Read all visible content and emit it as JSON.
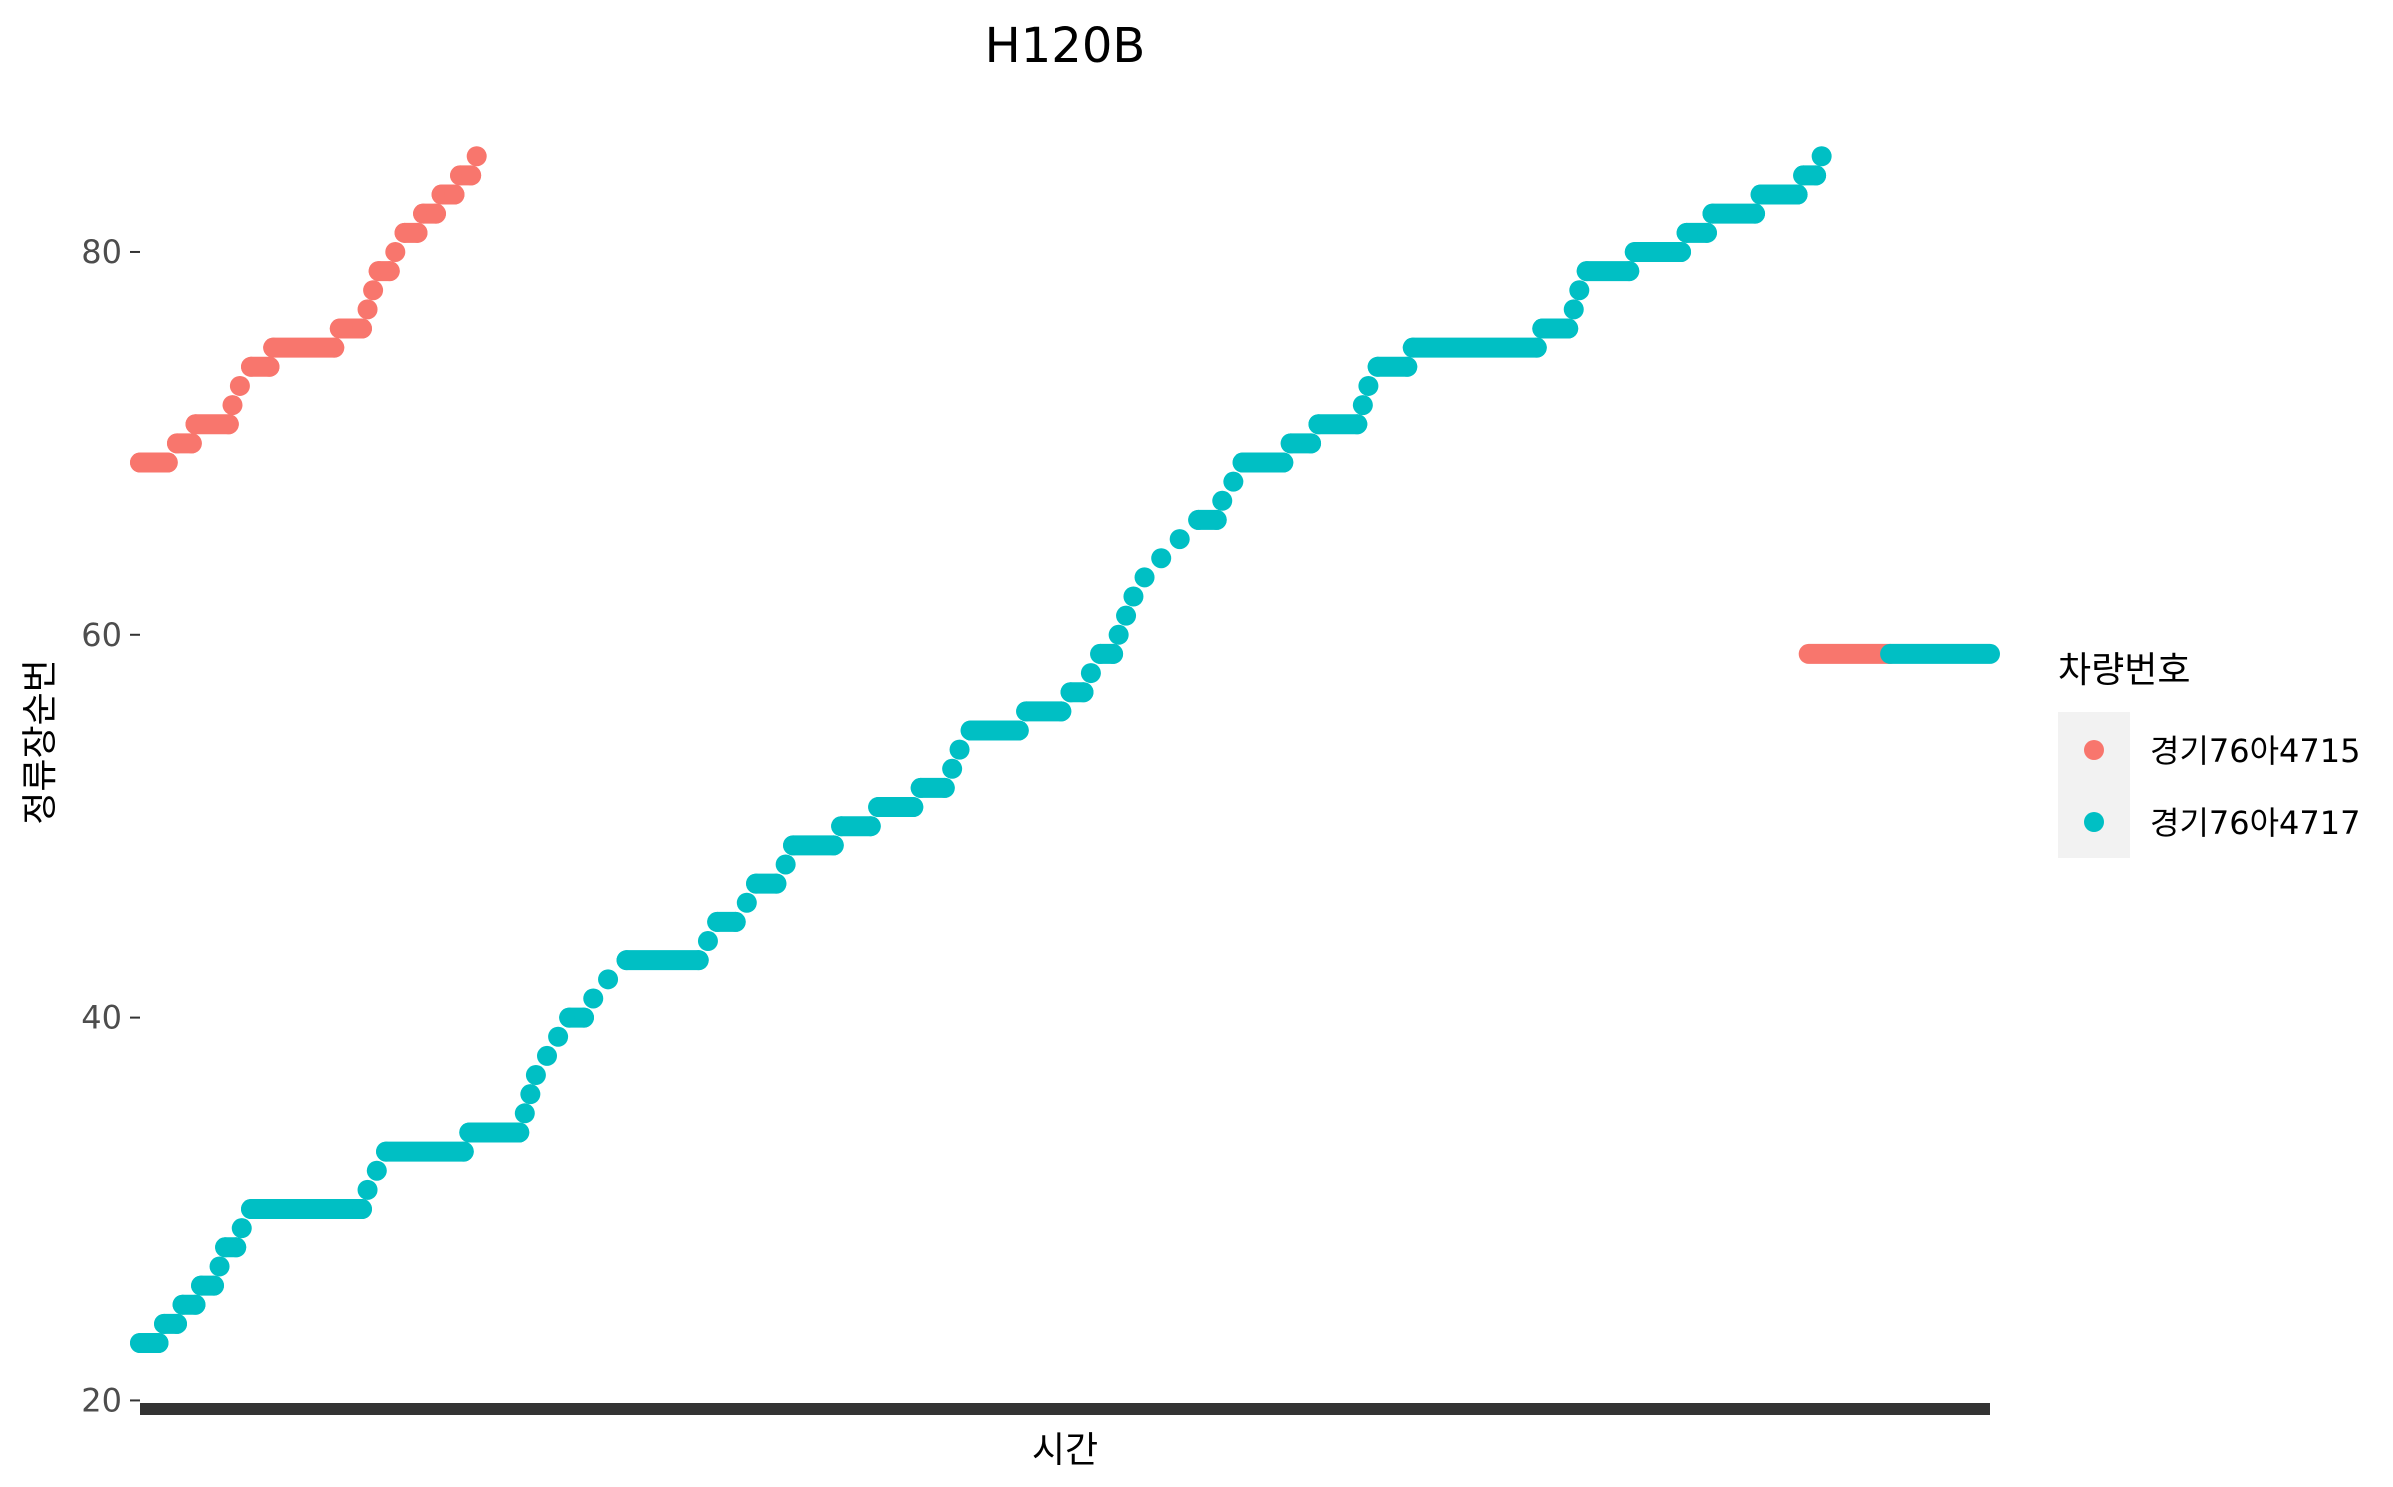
{
  "chart_data": {
    "type": "scatter",
    "title": "H120B",
    "xlabel": "시간",
    "ylabel": "정류장순번",
    "ylim": [
      19.5,
      88.2
    ],
    "yticks": [
      20,
      40,
      60,
      80
    ],
    "x_tick_labels_shown": false,
    "x_range": [
      0,
      100
    ],
    "grid": false,
    "legend": {
      "title": "차량번호",
      "placement": "right"
    },
    "series": [
      {
        "name": "경기76아4715",
        "color": "#F8766D",
        "steps": [
          [
            0,
            69
          ],
          [
            1.5,
            69
          ],
          [
            2,
            70
          ],
          [
            2.8,
            70
          ],
          [
            3,
            71
          ],
          [
            4.8,
            71
          ],
          [
            5,
            72
          ],
          [
            5.4,
            73
          ],
          [
            6,
            74
          ],
          [
            7,
            74
          ],
          [
            7.2,
            75
          ],
          [
            10.5,
            75
          ],
          [
            10.8,
            76
          ],
          [
            12,
            76
          ],
          [
            12.3,
            77
          ],
          [
            12.6,
            78
          ],
          [
            12.9,
            79
          ],
          [
            13.5,
            79
          ],
          [
            13.8,
            80
          ],
          [
            14.3,
            81
          ],
          [
            15,
            81
          ],
          [
            15.3,
            82
          ],
          [
            16,
            82
          ],
          [
            16.3,
            83
          ],
          [
            17,
            83
          ],
          [
            17.3,
            84
          ],
          [
            17.9,
            84
          ],
          [
            18.2,
            85
          ]
        ],
        "tail": [
          [
            90.2,
            59
          ],
          [
            94.6,
            59
          ]
        ]
      },
      {
        "name": "경기76아4717",
        "color": "#00BFC4",
        "steps": [
          [
            0,
            23
          ],
          [
            1,
            23
          ],
          [
            1.3,
            24
          ],
          [
            2,
            24
          ],
          [
            2.3,
            25
          ],
          [
            3,
            25
          ],
          [
            3.3,
            26
          ],
          [
            4,
            26
          ],
          [
            4.3,
            27
          ],
          [
            4.6,
            28
          ],
          [
            5.2,
            28
          ],
          [
            5.5,
            29
          ],
          [
            6,
            30
          ],
          [
            12,
            30
          ],
          [
            12.3,
            31
          ],
          [
            12.8,
            32
          ],
          [
            13.3,
            33
          ],
          [
            17.5,
            33
          ],
          [
            17.8,
            34
          ],
          [
            20.5,
            34
          ],
          [
            20.8,
            35
          ],
          [
            21.1,
            36
          ],
          [
            21.4,
            37
          ],
          [
            22,
            38
          ],
          [
            22.6,
            39
          ],
          [
            23.2,
            40
          ],
          [
            24,
            40
          ],
          [
            24.5,
            41
          ],
          [
            25.3,
            42
          ],
          [
            26.3,
            43
          ],
          [
            30.2,
            43
          ],
          [
            30.7,
            44
          ],
          [
            31.2,
            45
          ],
          [
            32.2,
            45
          ],
          [
            32.8,
            46
          ],
          [
            33.3,
            47
          ],
          [
            34.4,
            47
          ],
          [
            34.9,
            48
          ],
          [
            35.3,
            49
          ],
          [
            37.5,
            49
          ],
          [
            37.9,
            50
          ],
          [
            39.5,
            50
          ],
          [
            39.9,
            51
          ],
          [
            41.8,
            51
          ],
          [
            42.2,
            52
          ],
          [
            43.5,
            52
          ],
          [
            43.9,
            53
          ],
          [
            44.3,
            54
          ],
          [
            44.9,
            55
          ],
          [
            47.5,
            55
          ],
          [
            47.9,
            56
          ],
          [
            49.8,
            56
          ],
          [
            50.3,
            57
          ],
          [
            51,
            57
          ],
          [
            51.4,
            58
          ],
          [
            51.9,
            59
          ],
          [
            52.6,
            59
          ],
          [
            52.9,
            60
          ],
          [
            53.3,
            61
          ],
          [
            53.7,
            62
          ],
          [
            54.3,
            63
          ],
          [
            55.2,
            64
          ],
          [
            56.2,
            65
          ],
          [
            57.2,
            66
          ],
          [
            58.2,
            66
          ],
          [
            58.5,
            67
          ],
          [
            59.1,
            68
          ],
          [
            59.6,
            69
          ],
          [
            61.8,
            69
          ],
          [
            62.2,
            70
          ],
          [
            63.3,
            70
          ],
          [
            63.7,
            71
          ],
          [
            65.8,
            71
          ],
          [
            66.1,
            72
          ],
          [
            66.4,
            73
          ],
          [
            66.9,
            74
          ],
          [
            68.5,
            74
          ],
          [
            68.8,
            75
          ],
          [
            75.5,
            75
          ],
          [
            75.8,
            76
          ],
          [
            77.2,
            76
          ],
          [
            77.5,
            77
          ],
          [
            77.8,
            78
          ],
          [
            78.2,
            79
          ],
          [
            80.5,
            79
          ],
          [
            80.8,
            80
          ],
          [
            83.3,
            80
          ],
          [
            83.6,
            81
          ],
          [
            84.7,
            81
          ],
          [
            85,
            82
          ],
          [
            87.3,
            82
          ],
          [
            87.6,
            83
          ],
          [
            89.6,
            83
          ],
          [
            89.9,
            84
          ],
          [
            90.6,
            84
          ],
          [
            90.9,
            85
          ]
        ],
        "tail": [
          [
            94.6,
            59
          ],
          [
            100,
            59
          ]
        ]
      }
    ]
  }
}
